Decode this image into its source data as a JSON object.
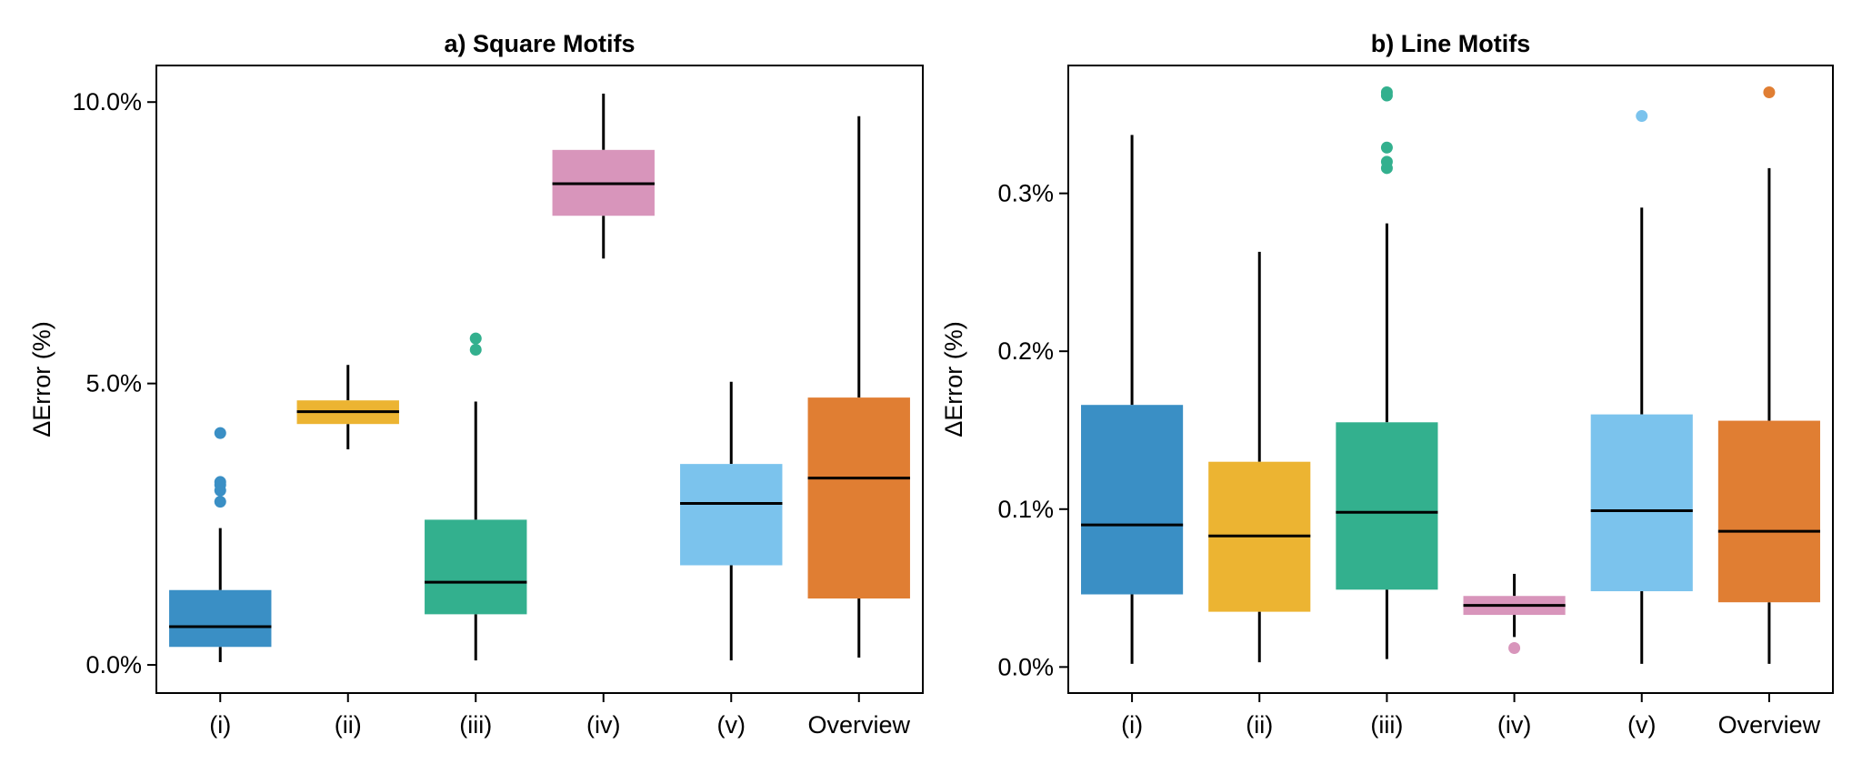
{
  "chart_data": [
    {
      "type": "box",
      "title": "a) Square Motifs",
      "ylabel": "ΔError (%)",
      "ylim": [
        -0.5,
        10.65
      ],
      "yticks": [
        0.0,
        5.0,
        10.0
      ],
      "ytick_labels": [
        "0.0%",
        "5.0%",
        "10.0%"
      ],
      "categories": [
        "(i)",
        "(ii)",
        "(iii)",
        "(iv)",
        "(v)",
        "Overview"
      ],
      "boxes": [
        {
          "label": "(i)",
          "color": "#3a8fc5",
          "whisker_low": 0.05,
          "q1": 0.32,
          "median": 0.68,
          "q3": 1.33,
          "whisker_high": 2.43,
          "outliers": [
            2.9,
            3.1,
            3.2,
            3.25,
            4.12
          ]
        },
        {
          "label": "(ii)",
          "color": "#ecb432",
          "whisker_low": 3.83,
          "q1": 4.28,
          "median": 4.5,
          "q3": 4.7,
          "whisker_high": 5.33,
          "outliers": []
        },
        {
          "label": "(iii)",
          "color": "#33b08e",
          "whisker_low": 0.08,
          "q1": 0.9,
          "median": 1.47,
          "q3": 2.58,
          "whisker_high": 4.68,
          "outliers": [
            5.6,
            5.8
          ]
        },
        {
          "label": "(iv)",
          "color": "#d895bb",
          "whisker_low": 7.22,
          "q1": 7.98,
          "median": 8.55,
          "q3": 9.15,
          "whisker_high": 10.15,
          "outliers": []
        },
        {
          "label": "(v)",
          "color": "#7bc3ed",
          "whisker_low": 0.08,
          "q1": 1.77,
          "median": 2.87,
          "q3": 3.57,
          "whisker_high": 5.03,
          "outliers": []
        },
        {
          "label": "Overview",
          "color": "#e07e33",
          "whisker_low": 0.13,
          "q1": 1.18,
          "median": 3.32,
          "q3": 4.75,
          "whisker_high": 9.75,
          "outliers": []
        }
      ]
    },
    {
      "type": "box",
      "title": "b) Line Motifs",
      "ylabel": "ΔError (%)",
      "ylim": [
        -0.0165,
        0.381
      ],
      "yticks": [
        0.0,
        0.1,
        0.2,
        0.3
      ],
      "ytick_labels": [
        "0.0%",
        "0.1%",
        "0.2%",
        "0.3%"
      ],
      "categories": [
        "(i)",
        "(ii)",
        "(iii)",
        "(iv)",
        "(v)",
        "Overview"
      ],
      "boxes": [
        {
          "label": "(i)",
          "color": "#3a8fc5",
          "whisker_low": 0.002,
          "q1": 0.046,
          "median": 0.09,
          "q3": 0.166,
          "whisker_high": 0.337,
          "outliers": []
        },
        {
          "label": "(ii)",
          "color": "#ecb432",
          "whisker_low": 0.003,
          "q1": 0.035,
          "median": 0.083,
          "q3": 0.13,
          "whisker_high": 0.263,
          "outliers": []
        },
        {
          "label": "(iii)",
          "color": "#33b08e",
          "whisker_low": 0.005,
          "q1": 0.049,
          "median": 0.098,
          "q3": 0.155,
          "whisker_high": 0.281,
          "outliers": [
            0.316,
            0.32,
            0.329,
            0.362,
            0.364
          ]
        },
        {
          "label": "(iv)",
          "color": "#d895bb",
          "whisker_low": 0.019,
          "q1": 0.033,
          "median": 0.039,
          "q3": 0.045,
          "whisker_high": 0.059,
          "outliers": [
            0.012
          ]
        },
        {
          "label": "(v)",
          "color": "#7bc3ed",
          "whisker_low": 0.002,
          "q1": 0.048,
          "median": 0.099,
          "q3": 0.16,
          "whisker_high": 0.291,
          "outliers": [
            0.349
          ]
        },
        {
          "label": "Overview",
          "color": "#e07e33",
          "whisker_low": 0.002,
          "q1": 0.041,
          "median": 0.086,
          "q3": 0.156,
          "whisker_high": 0.316,
          "outliers": [
            0.364
          ]
        }
      ]
    }
  ]
}
